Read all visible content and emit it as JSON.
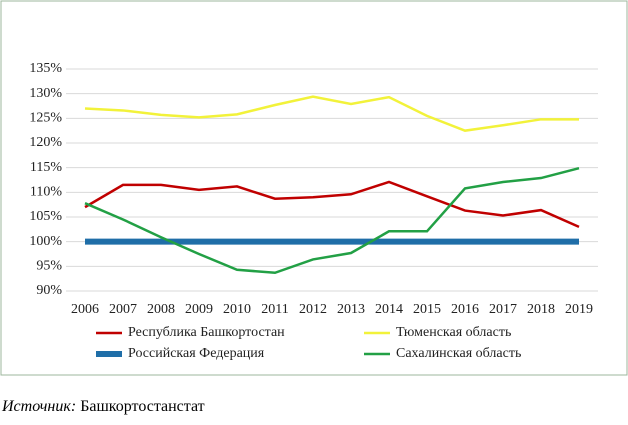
{
  "chart_data": {
    "type": "line",
    "categories": [
      2006,
      2007,
      2008,
      2009,
      2010,
      2011,
      2012,
      2013,
      2014,
      2015,
      2016,
      2017,
      2018,
      2019
    ],
    "series": [
      {
        "name": "Республика Башкортостан",
        "color": "#c00000",
        "values": [
          107,
          111.5,
          111.5,
          110.5,
          111.2,
          108.7,
          109,
          109.6,
          112.1,
          109.2,
          106.3,
          105.3,
          106.4,
          103
        ]
      },
      {
        "name": "Тюменская область",
        "color": "#f2f23a",
        "values": [
          127,
          126.6,
          125.7,
          125.2,
          125.8,
          127.7,
          129.4,
          127.9,
          129.3,
          125.5,
          122.5,
          123.6,
          124.8,
          124.8
        ]
      },
      {
        "name": "Российская Федерация",
        "color": "#1f6ea8",
        "values": [
          100,
          100,
          100,
          100,
          100,
          100,
          100,
          100,
          100,
          100,
          100,
          100,
          100,
          100
        ]
      },
      {
        "name": "Сахалинская область",
        "color": "#22a045",
        "values": [
          107.8,
          104.5,
          100.9,
          97.5,
          94.3,
          93.7,
          96.4,
          97.7,
          102.1,
          102.1,
          110.8,
          112.1,
          112.9,
          114.9
        ]
      }
    ],
    "ylim": [
      90,
      135
    ],
    "yticks": [
      {
        "value": 90,
        "label": "90%"
      },
      {
        "value": 95,
        "label": "95%"
      },
      {
        "value": 100,
        "label": "100%"
      },
      {
        "value": 105,
        "label": "105%"
      },
      {
        "value": 110,
        "label": "110%"
      },
      {
        "value": 115,
        "label": "115%"
      },
      {
        "value": 120,
        "label": "120%"
      },
      {
        "value": 125,
        "label": "125%"
      },
      {
        "value": 130,
        "label": "130%"
      },
      {
        "value": 135,
        "label": "135%"
      }
    ],
    "grid": true,
    "legend": "bottom"
  },
  "source": {
    "label": "Источник:",
    "text": "Башкортостанстат"
  }
}
